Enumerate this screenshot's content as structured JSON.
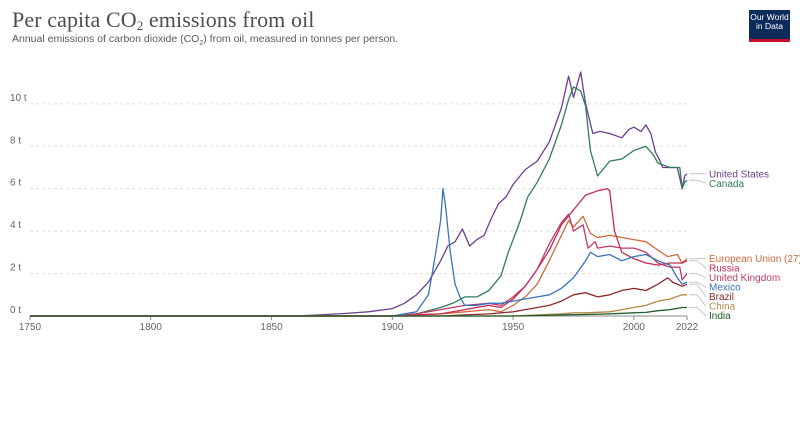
{
  "header": {
    "title_main": "Per capita CO",
    "title_sub": "2",
    "title_rest": " emissions from oil",
    "subtitle_main": "Annual emissions of carbon dioxide (CO",
    "subtitle_sub": "2",
    "subtitle_rest": ") from oil, measured in tonnes per person.",
    "logo_line1": "Our World",
    "logo_line2": "in Data"
  },
  "chart_data": {
    "type": "line",
    "title": "Per capita CO₂ emissions from oil",
    "subtitle": "Annual emissions of carbon dioxide (CO₂) from oil, measured in tonnes per person.",
    "xlabel": "",
    "ylabel": "",
    "xlim": [
      1750,
      2022
    ],
    "ylim": [
      0,
      11.5
    ],
    "x_ticks": [
      1750,
      1800,
      1850,
      1900,
      1950,
      2000,
      2022
    ],
    "x_tick_labels": [
      "1750",
      "1800",
      "1850",
      "1900",
      "1950",
      "2000",
      "2022"
    ],
    "y_ticks": [
      0,
      2,
      4,
      6,
      8,
      10
    ],
    "y_tick_labels": [
      "0 t",
      "2 t",
      "4 t",
      "6 t",
      "8 t",
      "10 t"
    ],
    "grid": "horizontal dotted",
    "legend": "right (end-of-line labels)",
    "series": [
      {
        "name": "United States",
        "color": "#6d3e91",
        "points": [
          [
            1750,
            0
          ],
          [
            1860,
            0
          ],
          [
            1870,
            0.05
          ],
          [
            1880,
            0.12
          ],
          [
            1890,
            0.2
          ],
          [
            1900,
            0.35
          ],
          [
            1905,
            0.6
          ],
          [
            1910,
            1.0
          ],
          [
            1915,
            1.6
          ],
          [
            1920,
            2.6
          ],
          [
            1923,
            3.3
          ],
          [
            1926,
            3.5
          ],
          [
            1929,
            4.1
          ],
          [
            1932,
            3.3
          ],
          [
            1935,
            3.6
          ],
          [
            1938,
            3.8
          ],
          [
            1941,
            4.6
          ],
          [
            1944,
            5.3
          ],
          [
            1947,
            5.6
          ],
          [
            1950,
            6.2
          ],
          [
            1955,
            6.9
          ],
          [
            1960,
            7.3
          ],
          [
            1965,
            8.2
          ],
          [
            1970,
            9.8
          ],
          [
            1972,
            10.8
          ],
          [
            1973,
            11.3
          ],
          [
            1975,
            10.3
          ],
          [
            1977,
            11.1
          ],
          [
            1978,
            11.5
          ],
          [
            1980,
            10.0
          ],
          [
            1983,
            8.6
          ],
          [
            1986,
            8.7
          ],
          [
            1990,
            8.6
          ],
          [
            1995,
            8.4
          ],
          [
            1998,
            8.8
          ],
          [
            2000,
            8.9
          ],
          [
            2003,
            8.7
          ],
          [
            2005,
            9.0
          ],
          [
            2007,
            8.6
          ],
          [
            2009,
            7.7
          ],
          [
            2010,
            7.5
          ],
          [
            2012,
            7.0
          ],
          [
            2015,
            7.0
          ],
          [
            2018,
            7.0
          ],
          [
            2020,
            6.0
          ],
          [
            2021,
            6.6
          ],
          [
            2022,
            6.7
          ]
        ]
      },
      {
        "name": "Canada",
        "color": "#2e7d5a",
        "points": [
          [
            1750,
            0
          ],
          [
            1900,
            0
          ],
          [
            1910,
            0.1
          ],
          [
            1920,
            0.4
          ],
          [
            1925,
            0.6
          ],
          [
            1930,
            0.9
          ],
          [
            1935,
            0.9
          ],
          [
            1940,
            1.2
          ],
          [
            1945,
            1.9
          ],
          [
            1948,
            3.0
          ],
          [
            1950,
            3.6
          ],
          [
            1953,
            4.5
          ],
          [
            1956,
            5.6
          ],
          [
            1960,
            6.3
          ],
          [
            1965,
            7.4
          ],
          [
            1970,
            9.0
          ],
          [
            1973,
            10.2
          ],
          [
            1975,
            10.8
          ],
          [
            1978,
            10.6
          ],
          [
            1980,
            9.9
          ],
          [
            1982,
            7.8
          ],
          [
            1985,
            6.6
          ],
          [
            1990,
            7.3
          ],
          [
            1995,
            7.4
          ],
          [
            2000,
            7.8
          ],
          [
            2005,
            8.0
          ],
          [
            2008,
            7.6
          ],
          [
            2010,
            7.2
          ],
          [
            2015,
            7.0
          ],
          [
            2019,
            7.0
          ],
          [
            2020,
            6.0
          ],
          [
            2021,
            6.3
          ],
          [
            2022,
            6.4
          ]
        ]
      },
      {
        "name": "European Union (27)",
        "color": "#d06a3c",
        "points": [
          [
            1750,
            0
          ],
          [
            1900,
            0
          ],
          [
            1910,
            0.05
          ],
          [
            1920,
            0.1
          ],
          [
            1930,
            0.2
          ],
          [
            1940,
            0.3
          ],
          [
            1945,
            0.2
          ],
          [
            1950,
            0.5
          ],
          [
            1955,
            0.9
          ],
          [
            1960,
            1.5
          ],
          [
            1965,
            2.6
          ],
          [
            1970,
            3.8
          ],
          [
            1973,
            4.5
          ],
          [
            1975,
            4.2
          ],
          [
            1979,
            4.7
          ],
          [
            1982,
            3.9
          ],
          [
            1985,
            3.7
          ],
          [
            1990,
            3.8
          ],
          [
            1995,
            3.7
          ],
          [
            2000,
            3.6
          ],
          [
            2005,
            3.5
          ],
          [
            2010,
            3.1
          ],
          [
            2014,
            2.8
          ],
          [
            2018,
            2.9
          ],
          [
            2020,
            2.5
          ],
          [
            2022,
            2.7
          ]
        ]
      },
      {
        "name": "Russia",
        "color": "#c22a52",
        "points": [
          [
            1750,
            0
          ],
          [
            1900,
            0
          ],
          [
            1910,
            0.05
          ],
          [
            1920,
            0.1
          ],
          [
            1930,
            0.3
          ],
          [
            1940,
            0.5
          ],
          [
            1945,
            0.4
          ],
          [
            1950,
            0.8
          ],
          [
            1955,
            1.4
          ],
          [
            1960,
            2.2
          ],
          [
            1965,
            3.1
          ],
          [
            1970,
            4.3
          ],
          [
            1975,
            5.0
          ],
          [
            1980,
            5.7
          ],
          [
            1985,
            5.9
          ],
          [
            1989,
            6.0
          ],
          [
            1990,
            5.9
          ],
          [
            1992,
            4.0
          ],
          [
            1995,
            3.0
          ],
          [
            2000,
            2.7
          ],
          [
            2005,
            2.5
          ],
          [
            2010,
            2.4
          ],
          [
            2015,
            2.5
          ],
          [
            2020,
            2.5
          ],
          [
            2022,
            2.6
          ]
        ]
      },
      {
        "name": "United Kingdom",
        "color": "#c03a68",
        "points": [
          [
            1750,
            0
          ],
          [
            1900,
            0
          ],
          [
            1910,
            0.1
          ],
          [
            1920,
            0.3
          ],
          [
            1930,
            0.5
          ],
          [
            1940,
            0.6
          ],
          [
            1945,
            0.5
          ],
          [
            1950,
            0.9
          ],
          [
            1955,
            1.4
          ],
          [
            1960,
            2.2
          ],
          [
            1965,
            3.4
          ],
          [
            1970,
            4.4
          ],
          [
            1973,
            4.8
          ],
          [
            1975,
            4.0
          ],
          [
            1979,
            4.3
          ],
          [
            1981,
            3.2
          ],
          [
            1984,
            3.5
          ],
          [
            1985,
            3.2
          ],
          [
            1990,
            3.3
          ],
          [
            1995,
            3.2
          ],
          [
            2000,
            3.2
          ],
          [
            2005,
            3.0
          ],
          [
            2008,
            2.7
          ],
          [
            2010,
            2.5
          ],
          [
            2015,
            2.3
          ],
          [
            2019,
            2.3
          ],
          [
            2020,
            1.7
          ],
          [
            2022,
            2.0
          ]
        ]
      },
      {
        "name": "Mexico",
        "color": "#3a73b8",
        "points": [
          [
            1750,
            0
          ],
          [
            1900,
            0
          ],
          [
            1910,
            0.2
          ],
          [
            1915,
            1.0
          ],
          [
            1918,
            3.0
          ],
          [
            1920,
            4.5
          ],
          [
            1921,
            6.0
          ],
          [
            1922,
            5.2
          ],
          [
            1924,
            3.0
          ],
          [
            1926,
            1.5
          ],
          [
            1928,
            0.9
          ],
          [
            1930,
            0.5
          ],
          [
            1935,
            0.5
          ],
          [
            1940,
            0.6
          ],
          [
            1945,
            0.6
          ],
          [
            1950,
            0.7
          ],
          [
            1955,
            0.8
          ],
          [
            1960,
            0.9
          ],
          [
            1965,
            1.0
          ],
          [
            1970,
            1.3
          ],
          [
            1975,
            1.8
          ],
          [
            1980,
            2.6
          ],
          [
            1982,
            3.0
          ],
          [
            1985,
            2.8
          ],
          [
            1990,
            2.9
          ],
          [
            1995,
            2.6
          ],
          [
            2000,
            2.8
          ],
          [
            2005,
            2.9
          ],
          [
            2010,
            2.6
          ],
          [
            2015,
            2.4
          ],
          [
            2018,
            1.8
          ],
          [
            2020,
            1.5
          ],
          [
            2022,
            1.6
          ]
        ]
      },
      {
        "name": "Brazil",
        "color": "#8c2a2a",
        "points": [
          [
            1750,
            0
          ],
          [
            1920,
            0
          ],
          [
            1930,
            0.05
          ],
          [
            1940,
            0.1
          ],
          [
            1950,
            0.2
          ],
          [
            1955,
            0.3
          ],
          [
            1960,
            0.4
          ],
          [
            1965,
            0.5
          ],
          [
            1970,
            0.7
          ],
          [
            1975,
            1.0
          ],
          [
            1980,
            1.1
          ],
          [
            1985,
            0.9
          ],
          [
            1990,
            1.0
          ],
          [
            1995,
            1.2
          ],
          [
            2000,
            1.3
          ],
          [
            2005,
            1.2
          ],
          [
            2010,
            1.5
          ],
          [
            2014,
            1.8
          ],
          [
            2016,
            1.6
          ],
          [
            2020,
            1.4
          ],
          [
            2022,
            1.5
          ]
        ]
      },
      {
        "name": "China",
        "color": "#b58a4a",
        "points": [
          [
            1750,
            0
          ],
          [
            1950,
            0
          ],
          [
            1960,
            0.05
          ],
          [
            1970,
            0.1
          ],
          [
            1975,
            0.15
          ],
          [
            1980,
            0.15
          ],
          [
            1990,
            0.2
          ],
          [
            1995,
            0.3
          ],
          [
            2000,
            0.4
          ],
          [
            2005,
            0.5
          ],
          [
            2010,
            0.7
          ],
          [
            2015,
            0.8
          ],
          [
            2020,
            1.0
          ],
          [
            2022,
            1.0
          ]
        ]
      },
      {
        "name": "India",
        "color": "#1f5a2a",
        "points": [
          [
            1750,
            0
          ],
          [
            1950,
            0
          ],
          [
            1960,
            0.02
          ],
          [
            1970,
            0.05
          ],
          [
            1980,
            0.07
          ],
          [
            1990,
            0.1
          ],
          [
            2000,
            0.15
          ],
          [
            2005,
            0.17
          ],
          [
            2010,
            0.25
          ],
          [
            2015,
            0.3
          ],
          [
            2020,
            0.4
          ],
          [
            2022,
            0.4
          ]
        ]
      }
    ]
  }
}
